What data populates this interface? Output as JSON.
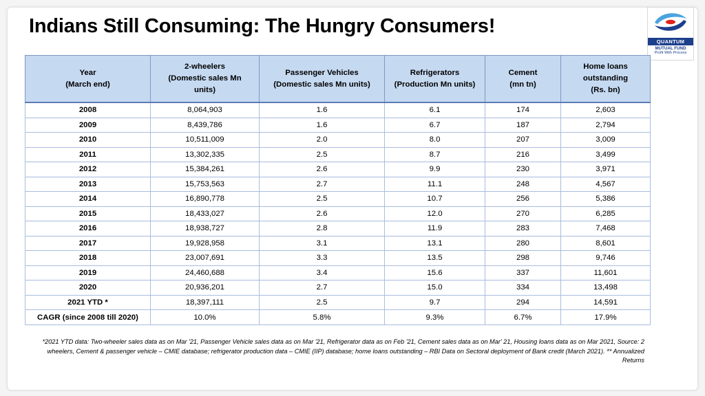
{
  "title": "Indians Still Consuming: The Hungry Consumers!",
  "logo": {
    "brand": "QUANTUM",
    "sub": "MUTUAL FUND",
    "tagline": "Profit With Process",
    "colors": {
      "navy": "#1c3f8c",
      "red": "#e2231a",
      "sky": "#4aa3df"
    }
  },
  "table": {
    "headers": [
      "Year\n(March end)",
      "2-wheelers\n(Domestic sales Mn\nunits)",
      "Passenger Vehicles\n(Domestic sales Mn units)",
      "Refrigerators\n(Production Mn units)",
      "Cement\n(mn tn)",
      "Home loans\noutstanding\n(Rs. bn)"
    ],
    "rows": [
      [
        "2008",
        "8,064,903",
        "1.6",
        "6.1",
        "174",
        "2,603"
      ],
      [
        "2009",
        "8,439,786",
        "1.6",
        "6.7",
        "187",
        "2,794"
      ],
      [
        "2010",
        "10,511,009",
        "2.0",
        "8.0",
        "207",
        "3,009"
      ],
      [
        "2011",
        "13,302,335",
        "2.5",
        "8.7",
        "216",
        "3,499"
      ],
      [
        "2012",
        "15,384,261",
        "2.6",
        "9.9",
        "230",
        "3,971"
      ],
      [
        "2013",
        "15,753,563",
        "2.7",
        "11.1",
        "248",
        "4,567"
      ],
      [
        "2014",
        "16,890,778",
        "2.5",
        "10.7",
        "256",
        "5,386"
      ],
      [
        "2015",
        "18,433,027",
        "2.6",
        "12.0",
        "270",
        "6,285"
      ],
      [
        "2016",
        "18,938,727",
        "2.8",
        "11.9",
        "283",
        "7,468"
      ],
      [
        "2017",
        "19,928,958",
        "3.1",
        "13.1",
        "280",
        "8,601"
      ],
      [
        "2018",
        "23,007,691",
        "3.3",
        "13.5",
        "298",
        "9,746"
      ],
      [
        "2019",
        "24,460,688",
        "3.4",
        "15.6",
        "337",
        "11,601"
      ],
      [
        "2020",
        "20,936,201",
        "2.7",
        "15.0",
        "334",
        "13,498"
      ],
      [
        "2021 YTD *",
        "18,397,111",
        "2.5",
        "9.7",
        "294",
        "14,591"
      ]
    ],
    "cagr": [
      "CAGR (since 2008 till 2020)",
      "10.0%",
      "5.8%",
      "9.3%",
      "6.7%",
      "17.9%"
    ]
  },
  "footnote": "*2021 YTD data: Two-wheeler sales data as on Mar '21, Passenger Vehicle sales data as on Mar '21, Refrigerator data as on Feb '21, Cement sales data as on Mar' 21, Housing loans data as on Mar 2021, Source: 2 wheelers, Cement & passenger vehicle – CMIE database; refrigerator production data – CMIE (IIP) database; home loans outstanding – RBI Data on Sectoral deployment of Bank credit (March 2021). ** Annualized Returns"
}
